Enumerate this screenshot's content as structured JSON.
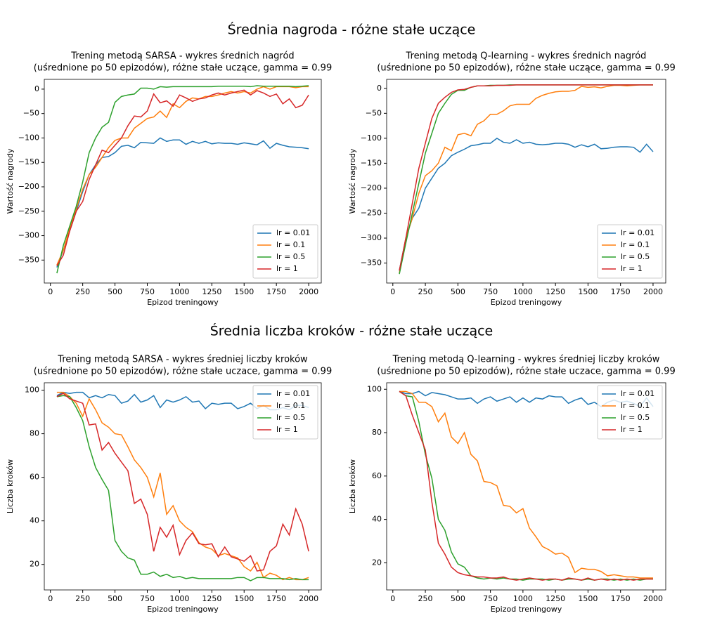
{
  "section_titles": [
    "Średnia nagroda - różne stałe uczące",
    "Średnia liczba kroków - różne stałe uczące"
  ],
  "chart_data": [
    {
      "type": "line",
      "title": [
        "Trening metodą SARSA - wykres średnich nagród",
        "(uśrednione po 50 epizodów), różne stałe uczące, gamma = 0.99"
      ],
      "xlabel": "Epizod treningowy",
      "ylabel": "Wartość nagrody",
      "legend": "lower right",
      "x": [
        50,
        100,
        150,
        200,
        250,
        300,
        350,
        400,
        450,
        500,
        550,
        600,
        650,
        700,
        750,
        800,
        850,
        900,
        950,
        1000,
        1050,
        1100,
        1150,
        1200,
        1250,
        1300,
        1350,
        1400,
        1450,
        1500,
        1550,
        1600,
        1650,
        1700,
        1750,
        1800,
        1850,
        1900,
        1950,
        2000
      ],
      "xlim": [
        -47.5,
        2097.5
      ],
      "xticks": [
        0,
        250,
        500,
        750,
        1000,
        1250,
        1500,
        1750,
        2000
      ],
      "ylim": [
        -397,
        20
      ],
      "yticks": [
        {
          "value": -350,
          "label": "−350"
        },
        {
          "value": -300,
          "label": "−300"
        },
        {
          "value": -250,
          "label": "−250"
        },
        {
          "value": -200,
          "label": "−200"
        },
        {
          "value": -150,
          "label": "−150"
        },
        {
          "value": -100,
          "label": "−100"
        },
        {
          "value": -50,
          "label": "−50"
        },
        0
      ],
      "series": [
        {
          "name": "lr = 0.01",
          "color": "#1f77b4",
          "values": [
            -365,
            -330,
            -290,
            -250,
            -210,
            -175,
            -155,
            -140,
            -138,
            -130,
            -117,
            -115,
            -120,
            -109,
            -110,
            -111,
            -100,
            -107,
            -104,
            -104,
            -113,
            -107,
            -111,
            -107,
            -112,
            -110,
            -111,
            -111,
            -113,
            -110,
            -112,
            -114,
            -106,
            -121,
            -111,
            -115,
            -118,
            -119,
            -120,
            -122
          ]
        },
        {
          "name": "lr = 0.1",
          "color": "#ff7f0e",
          "values": [
            -360,
            -330,
            -285,
            -245,
            -205,
            -175,
            -160,
            -140,
            -120,
            -105,
            -100,
            -100,
            -80,
            -70,
            -60,
            -57,
            -45,
            -58,
            -30,
            -38,
            -25,
            -18,
            -20,
            -15,
            -15,
            -12,
            -8,
            -5,
            -8,
            -5,
            -8,
            0,
            5,
            0,
            5,
            5,
            5,
            3,
            5,
            5
          ]
        },
        {
          "name": "lr = 0.5",
          "color": "#2ca02c",
          "values": [
            -377,
            -320,
            -280,
            -240,
            -190,
            -130,
            -100,
            -78,
            -68,
            -27,
            -15,
            -12,
            -10,
            2,
            2,
            0,
            5,
            4,
            5,
            5,
            5,
            5,
            5,
            5,
            5,
            6,
            6,
            6,
            6,
            6,
            5,
            7,
            6,
            6,
            6,
            6,
            6,
            5,
            6,
            7
          ]
        },
        {
          "name": "lr = 1",
          "color": "#d62728",
          "values": [
            -362,
            -340,
            -290,
            -250,
            -230,
            -185,
            -155,
            -125,
            -130,
            -115,
            -100,
            -75,
            -55,
            -57,
            -45,
            -10,
            -28,
            -24,
            -35,
            -12,
            -18,
            -25,
            -20,
            -18,
            -12,
            -8,
            -12,
            -8,
            -5,
            -2,
            -12,
            -3,
            -8,
            -15,
            -10,
            -30,
            -20,
            -38,
            -33,
            -12
          ]
        }
      ]
    },
    {
      "type": "line",
      "title": [
        "Trening metodą Q-learning - wykres średnich nagród",
        "(uśrednione po 50 epizodów), różne stałe uczące, gamma = 0.99"
      ],
      "xlabel": "Epizod treningowy",
      "ylabel": "Wartość nagrody",
      "legend": "lower right",
      "x": [
        50,
        100,
        150,
        200,
        250,
        300,
        350,
        400,
        450,
        500,
        550,
        600,
        650,
        700,
        750,
        800,
        850,
        900,
        950,
        1000,
        1050,
        1100,
        1150,
        1200,
        1250,
        1300,
        1350,
        1400,
        1450,
        1500,
        1550,
        1600,
        1650,
        1700,
        1750,
        1800,
        1850,
        1900,
        1950,
        2000
      ],
      "xlim": [
        -47.5,
        2097.5
      ],
      "xticks": [
        0,
        250,
        500,
        750,
        1000,
        1250,
        1500,
        1750,
        2000
      ],
      "ylim": [
        -390,
        18
      ],
      "yticks": [
        {
          "value": -350,
          "label": "−350"
        },
        {
          "value": -300,
          "label": "−300"
        },
        {
          "value": -250,
          "label": "−250"
        },
        {
          "value": -200,
          "label": "−200"
        },
        {
          "value": -150,
          "label": "−150"
        },
        {
          "value": -100,
          "label": "−100"
        },
        {
          "value": -50,
          "label": "−50"
        },
        0
      ],
      "series": [
        {
          "name": "lr = 0.01",
          "color": "#1f77b4",
          "values": [
            -365,
            -300,
            -260,
            -240,
            -200,
            -180,
            -160,
            -150,
            -135,
            -128,
            -122,
            -115,
            -113,
            -110,
            -110,
            -100,
            -108,
            -110,
            -103,
            -110,
            -108,
            -112,
            -113,
            -112,
            -110,
            -110,
            -112,
            -118,
            -113,
            -117,
            -112,
            -121,
            -120,
            -118,
            -117,
            -117,
            -118,
            -128,
            -112,
            -127
          ]
        },
        {
          "name": "lr = 0.1",
          "color": "#ff7f0e",
          "values": [
            -370,
            -300,
            -260,
            -210,
            -175,
            -165,
            -150,
            -118,
            -125,
            -93,
            -90,
            -95,
            -72,
            -65,
            -52,
            -52,
            -45,
            -35,
            -32,
            -32,
            -32,
            -20,
            -14,
            -10,
            -7,
            -6,
            -6,
            -4,
            4,
            2,
            3,
            1,
            4,
            6,
            6,
            5,
            6,
            7,
            7,
            7
          ]
        },
        {
          "name": "lr = 0.5",
          "color": "#2ca02c",
          "values": [
            -372,
            -310,
            -250,
            -190,
            -130,
            -90,
            -50,
            -30,
            -12,
            -4,
            -4,
            2,
            5,
            5,
            6,
            6,
            6,
            7,
            7,
            7,
            7,
            7,
            7,
            7,
            7,
            7,
            7,
            7,
            7,
            7,
            7,
            7,
            7,
            7,
            7,
            7,
            7,
            7,
            7,
            7
          ]
        },
        {
          "name": "lr = 1",
          "color": "#d62728",
          "values": [
            -365,
            -300,
            -230,
            -160,
            -110,
            -60,
            -30,
            -18,
            -8,
            -3,
            -2,
            2,
            5,
            5,
            5,
            6,
            6,
            6,
            7,
            7,
            7,
            7,
            7,
            7,
            7,
            7,
            7,
            7,
            7,
            7,
            7,
            7,
            7,
            7,
            7,
            7,
            7,
            7,
            7,
            7
          ]
        }
      ]
    },
    {
      "type": "line",
      "title": [
        "Trening metodą SARSA - wykres średniej liczby kroków",
        "(uśrednione po 50 epizodów), różne stałe uczace, gamma = 0.99"
      ],
      "xlabel": "Epizod treningowy",
      "ylabel": "Liczba kroków",
      "legend": "upper right",
      "x": [
        50,
        100,
        150,
        200,
        250,
        300,
        350,
        400,
        450,
        500,
        550,
        600,
        650,
        700,
        750,
        800,
        850,
        900,
        950,
        1000,
        1050,
        1100,
        1150,
        1200,
        1250,
        1300,
        1350,
        1400,
        1450,
        1500,
        1550,
        1600,
        1650,
        1700,
        1750,
        1800,
        1850,
        1900,
        1950,
        2000
      ],
      "xlim": [
        -47.5,
        2097.5
      ],
      "xticks": [
        0,
        250,
        500,
        750,
        1000,
        1250,
        1500,
        1750,
        2000
      ],
      "ylim": [
        8.3,
        103.4
      ],
      "yticks": [
        20,
        40,
        60,
        80,
        100
      ],
      "series": [
        {
          "name": "lr = 0.01",
          "color": "#1f77b4",
          "values": [
            97.5,
            99,
            98.5,
            99,
            99,
            96.5,
            97.5,
            96.5,
            98,
            97.5,
            94,
            95,
            98,
            94.5,
            95.5,
            97.5,
            92,
            95.5,
            94.5,
            95.5,
            97,
            94.5,
            95,
            91.5,
            94,
            93.5,
            94,
            94,
            91.5,
            92.5,
            94,
            91.5,
            93,
            91,
            91,
            92,
            91,
            93,
            93,
            92
          ]
        },
        {
          "name": "lr = 0.1",
          "color": "#ff7f0e",
          "values": [
            99,
            99,
            97,
            94,
            88,
            96,
            91,
            85,
            83,
            80,
            79.5,
            74,
            68,
            64.5,
            60,
            51,
            62,
            43,
            47,
            40,
            37,
            35,
            30,
            28,
            27,
            24,
            25,
            24,
            23,
            19,
            17,
            21,
            14,
            16,
            15,
            13,
            14,
            13,
            13,
            14
          ]
        },
        {
          "name": "lr = 0.5",
          "color": "#2ca02c",
          "values": [
            97,
            97.5,
            97,
            92,
            86,
            74,
            64.5,
            59,
            54,
            31,
            26,
            23,
            22,
            15.5,
            15.5,
            16.5,
            14.5,
            15.5,
            14,
            14.5,
            13.5,
            14,
            13.5,
            13.5,
            13.5,
            13.5,
            13.5,
            13.5,
            14,
            14,
            12.5,
            14,
            14,
            13.5,
            13.5,
            13.5,
            13,
            13.5,
            13,
            13
          ]
        },
        {
          "name": "lr = 1",
          "color": "#d62728",
          "values": [
            97,
            98.5,
            96,
            95,
            94,
            84,
            84.5,
            72.5,
            76,
            71,
            67,
            63,
            48,
            50,
            43,
            26,
            37,
            32.5,
            38,
            24.5,
            31,
            34.5,
            29.5,
            29,
            29.5,
            23.5,
            28,
            23.5,
            22.5,
            21.5,
            24,
            17,
            17.5,
            26,
            28.5,
            38.5,
            33.5,
            45.5,
            38.5,
            26
          ]
        }
      ]
    },
    {
      "type": "line",
      "title": [
        "Trening metodą Q-learning - wykres średniej liczby kroków",
        "(uśrednione po 50 epizodów), różne stałe uczace, gamma = 0.99"
      ],
      "xlabel": "Epizod treningowy",
      "ylabel": "Liczba kroków",
      "legend": "upper right",
      "x": [
        50,
        100,
        150,
        200,
        250,
        300,
        350,
        400,
        450,
        500,
        550,
        600,
        650,
        700,
        750,
        800,
        850,
        900,
        950,
        1000,
        1050,
        1100,
        1150,
        1200,
        1250,
        1300,
        1350,
        1400,
        1450,
        1500,
        1550,
        1600,
        1650,
        1700,
        1750,
        1800,
        1850,
        1900,
        1950,
        2000
      ],
      "xlim": [
        -47.5,
        2097.5
      ],
      "xticks": [
        0,
        250,
        500,
        750,
        1000,
        1250,
        1500,
        1750,
        2000
      ],
      "ylim": [
        7.5,
        103
      ],
      "yticks": [
        20,
        40,
        60,
        80,
        100
      ],
      "series": [
        {
          "name": "lr = 0.01",
          "color": "#1f77b4",
          "values": [
            99,
            98,
            98,
            99,
            97,
            98.5,
            98,
            97.5,
            96.5,
            95.5,
            95.5,
            96,
            93.5,
            95.5,
            96.5,
            94.5,
            95.5,
            96.5,
            94,
            96,
            94,
            96,
            95.5,
            97,
            96.5,
            96.5,
            93.5,
            95,
            96,
            93,
            94,
            92,
            94,
            95,
            94,
            94.5,
            93.5,
            92,
            96,
            92
          ]
        },
        {
          "name": "lr = 0.1",
          "color": "#ff7f0e",
          "values": [
            99,
            99,
            98,
            94,
            94,
            92,
            85,
            89,
            78,
            75,
            80,
            70,
            67,
            57.5,
            57,
            55.5,
            46.5,
            46,
            43,
            45,
            36,
            32,
            27.5,
            26,
            24,
            24.5,
            22.5,
            15.5,
            17.5,
            17,
            17,
            16,
            14,
            14.5,
            14,
            13.5,
            13.5,
            13,
            13,
            13
          ]
        },
        {
          "name": "lr = 0.5",
          "color": "#2ca02c",
          "values": [
            99,
            97,
            96.5,
            85,
            70,
            59,
            40,
            35,
            25,
            19.5,
            18,
            14,
            13,
            12.5,
            13,
            12.5,
            13,
            12.5,
            12.5,
            12,
            12.5,
            12.5,
            12.5,
            12,
            12.5,
            12,
            12.5,
            12.5,
            12,
            12.5,
            12,
            12.5,
            12.5,
            12,
            12.5,
            12,
            12.5,
            12,
            12.5,
            12.5
          ]
        },
        {
          "name": "lr = 1",
          "color": "#d62728",
          "values": [
            99,
            97,
            88,
            80,
            72,
            48,
            29,
            24,
            18,
            15.5,
            14.5,
            14,
            13.5,
            13.5,
            13,
            13,
            13.5,
            12.5,
            12,
            12.5,
            13,
            12.5,
            12,
            12.5,
            12.5,
            12,
            13,
            12.5,
            12,
            13,
            12,
            12.5,
            12,
            12.5,
            12,
            12.5,
            12,
            12.5,
            12.5,
            12.5
          ]
        }
      ]
    }
  ]
}
